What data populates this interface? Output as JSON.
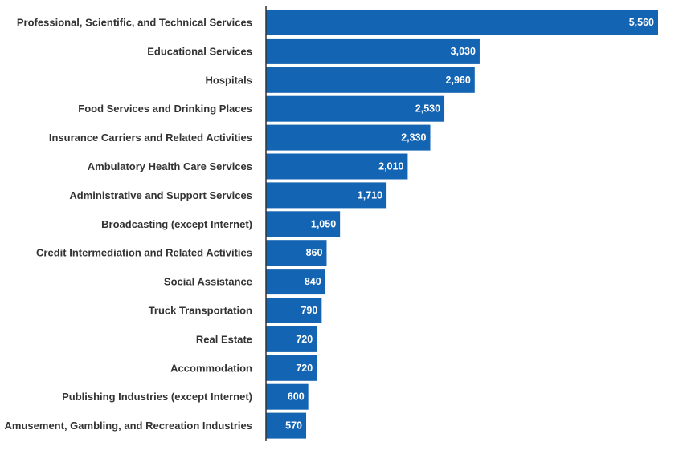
{
  "chart_data": {
    "type": "bar",
    "orientation": "horizontal",
    "categories": [
      "Professional, Scientific, and Technical Services",
      "Educational Services",
      "Hospitals",
      "Food Services and Drinking Places",
      "Insurance Carriers and Related Activities",
      "Ambulatory Health Care Services",
      "Administrative and Support Services",
      "Broadcasting (except Internet)",
      "Credit Intermediation and Related Activities",
      "Social Assistance",
      "Truck Transportation",
      "Real Estate",
      "Accommodation",
      "Publishing Industries (except Internet)",
      "Amusement, Gambling, and Recreation Industries"
    ],
    "values": [
      5560,
      3030,
      2960,
      2530,
      2330,
      2010,
      1710,
      1050,
      860,
      840,
      790,
      720,
      720,
      600,
      570
    ],
    "value_labels": [
      "5,560",
      "3,030",
      "2,960",
      "2,530",
      "2,330",
      "2,010",
      "1,710",
      "1,050",
      "860",
      "840",
      "790",
      "720",
      "720",
      "600",
      "570"
    ],
    "xlim": [
      0,
      5560
    ],
    "grid": false,
    "legend": "none",
    "colors": {
      "bar": "#1464b4",
      "axis": "#333333",
      "label": "#333333",
      "value_label": "#ffffff"
    }
  }
}
